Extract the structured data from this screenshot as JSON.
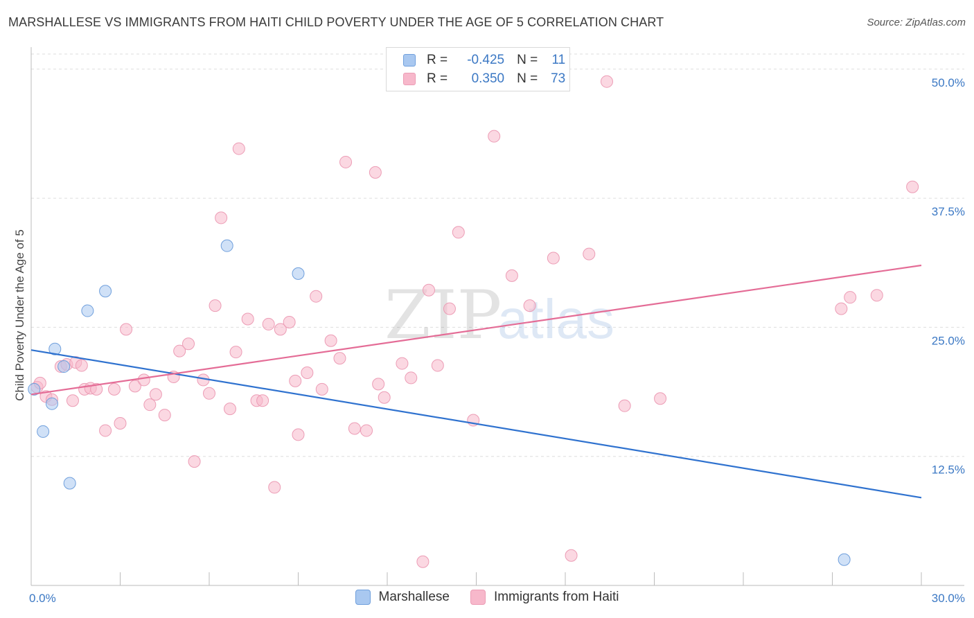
{
  "header": {
    "title": "MARSHALLESE VS IMMIGRANTS FROM HAITI CHILD POVERTY UNDER THE AGE OF 5 CORRELATION CHART",
    "source": "Source: ZipAtlas.com"
  },
  "watermark": {
    "zip": "ZIP",
    "atlas": "atlas"
  },
  "legend": {
    "rows": [
      {
        "r_label": "R =",
        "r_value": "-0.425",
        "n_label": "N =",
        "n_value": "11",
        "color": "#a9c8f0"
      },
      {
        "r_label": "R =",
        "r_value": "0.350",
        "n_label": "N =",
        "n_value": "73",
        "color": "#f7b8cb"
      }
    ]
  },
  "chart_data": {
    "type": "scatter",
    "title": "MARSHALLESE VS IMMIGRANTS FROM HAITI CHILD POVERTY UNDER THE AGE OF 5 CORRELATION CHART",
    "ylabel": "Child Poverty Under the Age of 5",
    "xlabel": "",
    "xlim": [
      0,
      30
    ],
    "ylim": [
      0,
      52
    ],
    "x_tick_labels": [
      "0.0%",
      "30.0%"
    ],
    "y_ticks": [
      12.5,
      25.0,
      37.5,
      50.0
    ],
    "y_tick_labels": [
      "12.5%",
      "25.0%",
      "37.5%",
      "50.0%"
    ],
    "grid": true,
    "legend_position": "bottom",
    "series": [
      {
        "name": "Marshallese",
        "color": "#a9c8f0",
        "line_color": "#2f72cf",
        "trend": [
          [
            0,
            22.8
          ],
          [
            30,
            8.5
          ]
        ],
        "points": [
          [
            0.1,
            19.0
          ],
          [
            0.4,
            14.9
          ],
          [
            0.7,
            17.6
          ],
          [
            0.8,
            22.9
          ],
          [
            1.1,
            21.2
          ],
          [
            1.3,
            9.9
          ],
          [
            1.9,
            26.6
          ],
          [
            2.5,
            28.5
          ],
          [
            6.6,
            32.9
          ],
          [
            9.0,
            30.2
          ],
          [
            27.4,
            2.5
          ]
        ]
      },
      {
        "name": "Immigrants from Haiti",
        "color": "#f7b8cb",
        "line_color": "#e46c96",
        "trend": [
          [
            0,
            18.5
          ],
          [
            30,
            31.0
          ]
        ],
        "points": [
          [
            0.2,
            19.2
          ],
          [
            0.5,
            18.3
          ],
          [
            0.7,
            18.0
          ],
          [
            1.0,
            21.2
          ],
          [
            1.2,
            21.4
          ],
          [
            1.4,
            17.9
          ],
          [
            1.5,
            21.6
          ],
          [
            1.8,
            19.0
          ],
          [
            2.0,
            19.1
          ],
          [
            2.5,
            15.0
          ],
          [
            2.8,
            19.0
          ],
          [
            3.0,
            15.7
          ],
          [
            3.2,
            24.8
          ],
          [
            3.5,
            19.3
          ],
          [
            3.8,
            19.9
          ],
          [
            4.0,
            17.5
          ],
          [
            4.2,
            18.5
          ],
          [
            4.5,
            16.5
          ],
          [
            4.8,
            20.2
          ],
          [
            5.0,
            22.7
          ],
          [
            5.3,
            23.4
          ],
          [
            5.5,
            12.0
          ],
          [
            5.8,
            19.9
          ],
          [
            6.0,
            18.6
          ],
          [
            6.2,
            27.1
          ],
          [
            6.4,
            35.6
          ],
          [
            6.7,
            17.1
          ],
          [
            6.9,
            22.6
          ],
          [
            7.0,
            42.3
          ],
          [
            7.3,
            25.8
          ],
          [
            7.6,
            17.9
          ],
          [
            7.8,
            17.9
          ],
          [
            8.0,
            25.3
          ],
          [
            8.2,
            9.5
          ],
          [
            8.4,
            24.8
          ],
          [
            8.7,
            25.5
          ],
          [
            8.9,
            19.8
          ],
          [
            9.0,
            14.6
          ],
          [
            9.3,
            20.6
          ],
          [
            9.6,
            28.0
          ],
          [
            9.8,
            19.0
          ],
          [
            10.1,
            23.7
          ],
          [
            10.4,
            22.0
          ],
          [
            10.6,
            41.0
          ],
          [
            10.9,
            15.2
          ],
          [
            11.3,
            15.0
          ],
          [
            11.6,
            40.0
          ],
          [
            11.7,
            19.5
          ],
          [
            11.9,
            18.2
          ],
          [
            12.5,
            21.5
          ],
          [
            12.8,
            20.1
          ],
          [
            13.2,
            2.3
          ],
          [
            13.4,
            28.6
          ],
          [
            13.7,
            21.3
          ],
          [
            14.1,
            26.8
          ],
          [
            14.4,
            34.2
          ],
          [
            14.9,
            16.0
          ],
          [
            15.6,
            43.5
          ],
          [
            16.2,
            30.0
          ],
          [
            16.8,
            27.1
          ],
          [
            17.6,
            31.7
          ],
          [
            18.2,
            2.9
          ],
          [
            18.8,
            32.1
          ],
          [
            19.4,
            48.8
          ],
          [
            20.0,
            17.4
          ],
          [
            21.2,
            18.1
          ],
          [
            27.3,
            26.8
          ],
          [
            27.6,
            27.9
          ],
          [
            28.5,
            28.1
          ],
          [
            29.7,
            38.6
          ],
          [
            0.3,
            19.6
          ],
          [
            2.2,
            19.0
          ],
          [
            1.7,
            21.3
          ]
        ]
      }
    ]
  }
}
